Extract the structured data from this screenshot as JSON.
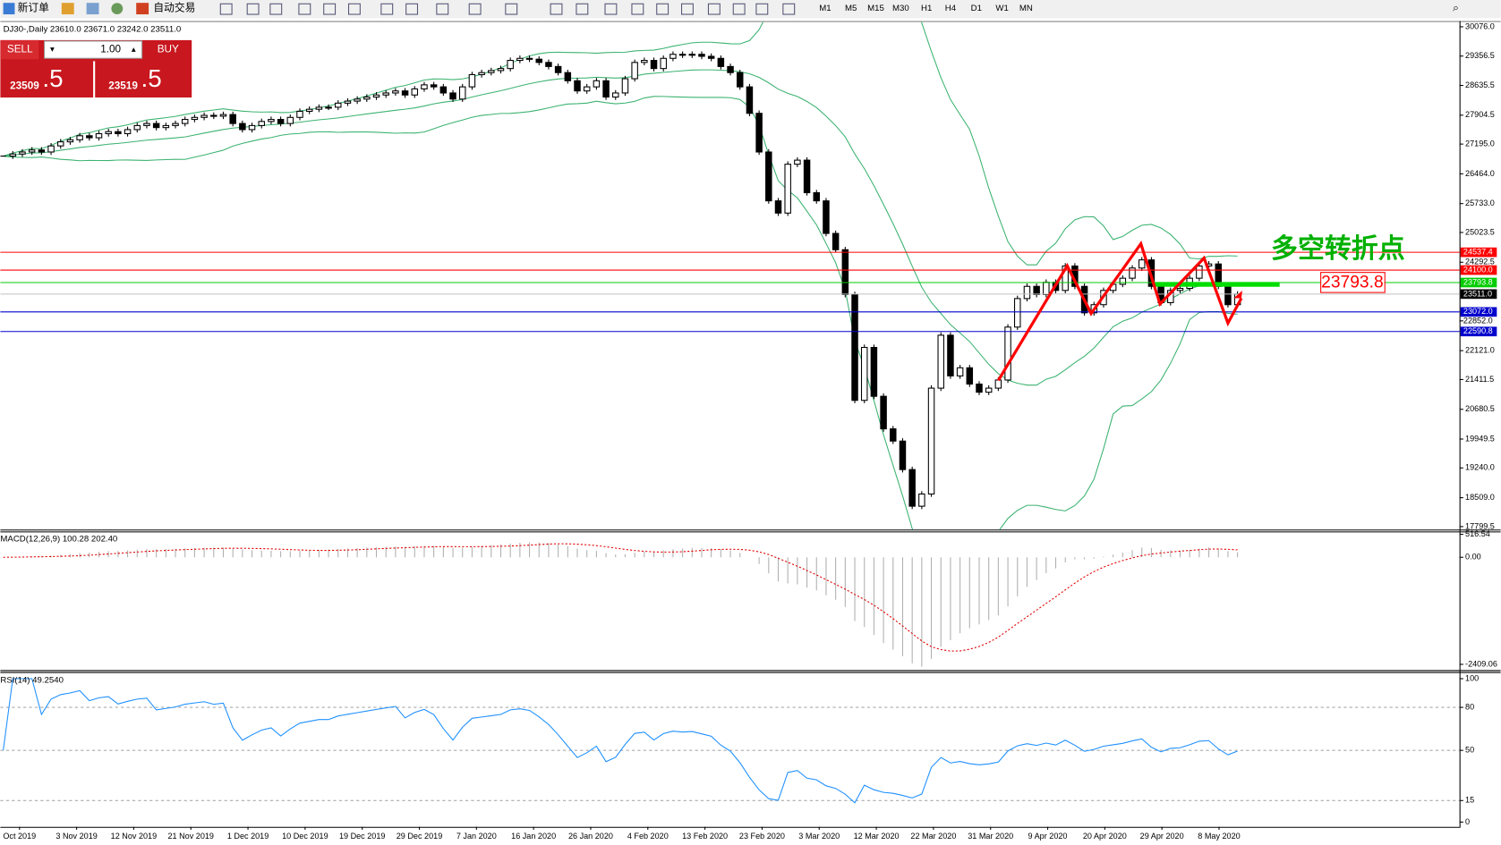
{
  "toolbar": {
    "new_order": "新订单",
    "auto_trading": "自动交易",
    "timeframes": [
      "M1",
      "M5",
      "M15",
      "M30",
      "H1",
      "H4",
      "D1",
      "W1",
      "MN"
    ]
  },
  "trade_panel": {
    "sell": "SELL",
    "buy": "BUY",
    "lot": "1.00",
    "bid_main": "23509",
    "bid_frac": ".5",
    "ask_main": "23519",
    "ask_frac": ".5"
  },
  "chart_data": {
    "type": "candlestick",
    "title": "DJ30-,Daily  23610.0 23671.0 23242.0 23511.0",
    "x_labels": [
      "Oct 2019",
      "3 Nov 2019",
      "12 Nov 2019",
      "21 Nov 2019",
      "1 Dec 2019",
      "10 Dec 2019",
      "19 Dec 2019",
      "29 Dec 2019",
      "7 Jan 2020",
      "16 Jan 2020",
      "26 Jan 2020",
      "4 Feb 2020",
      "13 Feb 2020",
      "23 Feb 2020",
      "3 Mar 2020",
      "12 Mar 2020",
      "22 Mar 2020",
      "31 Mar 2020",
      "9 Apr 2020",
      "20 Apr 2020",
      "29 Apr 2020",
      "8 May 2020"
    ],
    "close": [
      26900,
      26950,
      27000,
      27050,
      27000,
      27150,
      27250,
      27300,
      27400,
      27350,
      27450,
      27500,
      27450,
      27550,
      27650,
      27700,
      27600,
      27650,
      27700,
      27800,
      27850,
      27900,
      27880,
      27920,
      27700,
      27550,
      27650,
      27750,
      27800,
      27700,
      27850,
      28000,
      28050,
      28100,
      28100,
      28200,
      28250,
      28300,
      28350,
      28400,
      28450,
      28500,
      28400,
      28550,
      28650,
      28600,
      28450,
      28300,
      28600,
      28900,
      28950,
      29000,
      29050,
      29250,
      29300,
      29280,
      29200,
      29100,
      28950,
      28750,
      28500,
      28600,
      28750,
      28350,
      28450,
      28800,
      29200,
      29250,
      29050,
      29300,
      29400,
      29380,
      29400,
      29350,
      29300,
      29100,
      28950,
      28600,
      27950,
      27000,
      25800,
      25500,
      26700,
      26800,
      26000,
      25800,
      25000,
      24600,
      23500,
      20900,
      22200,
      21000,
      20200,
      19900,
      19200,
      18300,
      18600,
      21200,
      22500,
      21500,
      21700,
      21300,
      21100,
      21200,
      21400,
      22700,
      23400,
      23700,
      23500,
      23800,
      23600,
      24200,
      23700,
      23050,
      23250,
      23600,
      23750,
      23900,
      24150,
      24350,
      23700,
      23300,
      23600,
      23650,
      23900,
      24200,
      24250,
      23700,
      23250,
      23511
    ],
    "ylim": [
      17750,
      30170
    ],
    "yticks": [
      {
        "value": 30076,
        "label": "30076.0"
      },
      {
        "value": 29356.5,
        "label": "29356.5"
      },
      {
        "value": 28635.5,
        "label": "28635.5"
      },
      {
        "value": 27904.5,
        "label": "27904.5"
      },
      {
        "value": 27195,
        "label": "27195.0"
      },
      {
        "value": 26464,
        "label": "26464.0"
      },
      {
        "value": 25733,
        "label": "25733.0"
      },
      {
        "value": 25023.5,
        "label": "25023.5"
      },
      {
        "value": 24292.5,
        "label": "24292.5"
      },
      {
        "value": 22121,
        "label": "22121.0"
      },
      {
        "value": 21411.5,
        "label": "21411.5"
      },
      {
        "value": 20680.5,
        "label": "20680.5"
      },
      {
        "value": 19949.5,
        "label": "19949.5"
      },
      {
        "value": 19240,
        "label": "19240.0"
      },
      {
        "value": 18509,
        "label": "18509.0"
      },
      {
        "value": 17799.5,
        "label": "17799.5"
      }
    ],
    "levels": [
      {
        "value": 24537.4,
        "label": "24537.4",
        "color": "#ff0000"
      },
      {
        "value": 24100,
        "label": "24100.0",
        "color": "#ff0000"
      },
      {
        "value": 23793.8,
        "label": "23793.8",
        "color": "#00cc00"
      },
      {
        "value": 23511,
        "label": "23511.0",
        "color": "#000000"
      },
      {
        "value": 23072,
        "label": "23072.0",
        "color": "#0000cc"
      },
      {
        "value": 22590.8,
        "label": "22590.8",
        "color": "#0000cc"
      }
    ],
    "marker_labels": [
      {
        "value": 22852,
        "label": "22852.0"
      }
    ],
    "annotation": "多空转折点",
    "annotation_box": "23793.8",
    "macd": {
      "title": "MACD(12,26,9) 100.28 202.40",
      "ylim": [
        -2409.06,
        516.54
      ],
      "yticks": [
        516.54,
        {
          "value": 0,
          "label": "0.00"
        },
        -2409.06
      ]
    },
    "rsi": {
      "title": "RSI(14) 49.2540",
      "ylim": [
        0,
        100
      ],
      "yticks": [
        100,
        80,
        50,
        15,
        0
      ]
    }
  }
}
